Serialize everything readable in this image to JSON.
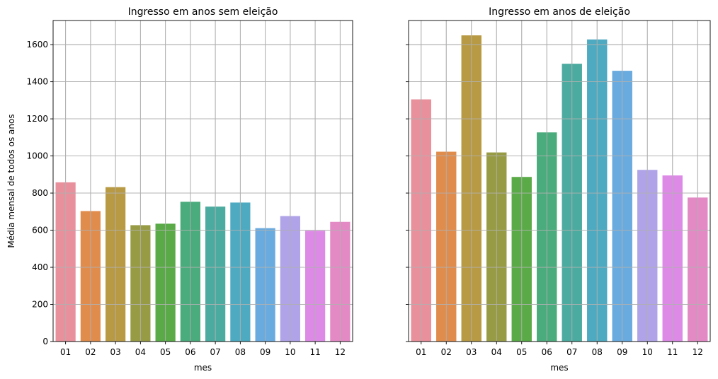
{
  "chart_data": [
    {
      "type": "bar",
      "title": "Ingresso em anos sem eleição",
      "xlabel": "mes",
      "ylabel": "Média mensal de todos os anos",
      "categories": [
        "01",
        "02",
        "03",
        "04",
        "05",
        "06",
        "07",
        "08",
        "09",
        "10",
        "11",
        "12"
      ],
      "values": [
        858,
        703,
        832,
        627,
        635,
        753,
        727,
        749,
        611,
        676,
        597,
        645
      ],
      "ylim": [
        0,
        1730
      ],
      "yticks": [
        0,
        200,
        400,
        600,
        800,
        1000,
        1200,
        1400,
        1600
      ],
      "grid": true
    },
    {
      "type": "bar",
      "title": "Ingresso em anos de eleição",
      "xlabel": "mes",
      "ylabel": "",
      "categories": [
        "01",
        "02",
        "03",
        "04",
        "05",
        "06",
        "07",
        "08",
        "09",
        "10",
        "11",
        "12"
      ],
      "values": [
        1305,
        1023,
        1650,
        1019,
        887,
        1127,
        1497,
        1628,
        1459,
        925,
        895,
        776
      ],
      "ylim": [
        0,
        1730
      ],
      "yticks": [
        0,
        200,
        400,
        600,
        800,
        1000,
        1200,
        1400,
        1600
      ],
      "grid": true,
      "sharey": true
    }
  ],
  "colors": [
    "#e8909c",
    "#e08c4d",
    "#b89a44",
    "#979b44",
    "#5aab48",
    "#4aab7c",
    "#4caba0",
    "#4eaac0",
    "#6aabdf",
    "#b0a3e8",
    "#dd8ae6",
    "#e38ac5"
  ]
}
